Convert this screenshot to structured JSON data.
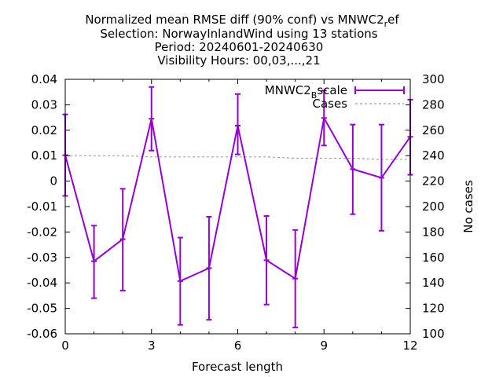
{
  "chart_data": {
    "type": "line",
    "title_lines": [
      "Normalized mean RMSE diff (90% conf) vs MNWC2_ref",
      "Selection: NorwayInlandWind using    13 stations",
      "Period: 20240601-20240630",
      "Visibility   Hours: 00,03,...,21"
    ],
    "xlabel": "Forecast length",
    "ylabel": "",
    "y2label": "No cases",
    "xlim": [
      0,
      12
    ],
    "ylim": [
      -0.06,
      0.04
    ],
    "y2lim": [
      100,
      300
    ],
    "xticks": [
      "0",
      "3",
      "6",
      "9",
      "12"
    ],
    "yticks": [
      "-0.06",
      "-0.05",
      "-0.04",
      "-0.03",
      "-0.02",
      "-0.01",
      "0",
      "0.01",
      "0.02",
      "0.03",
      "0.04"
    ],
    "y2ticks": [
      "100",
      "120",
      "140",
      "160",
      "180",
      "200",
      "220",
      "240",
      "260",
      "280",
      "300"
    ],
    "grid": false,
    "legend_position": "top-right",
    "series": [
      {
        "name": "MNWC2_Bscale",
        "color": "#9400d3",
        "x": [
          0,
          1,
          2,
          3,
          4,
          5,
          6,
          7,
          8,
          9,
          10,
          11,
          12
        ],
        "y": [
          0.0102,
          -0.0315,
          -0.0228,
          0.0245,
          -0.0393,
          -0.0342,
          0.0218,
          -0.0311,
          -0.0383,
          0.0248,
          0.0047,
          0.0013,
          0.0174
        ],
        "y_low": [
          -0.0058,
          -0.046,
          -0.043,
          0.012,
          -0.0565,
          -0.0545,
          0.0105,
          -0.0485,
          -0.0575,
          0.014,
          -0.013,
          -0.0195,
          0.0025
        ],
        "y_high": [
          0.0262,
          -0.0175,
          -0.003,
          0.037,
          -0.0222,
          -0.014,
          0.0342,
          -0.0137,
          -0.0192,
          0.0356,
          0.0222,
          0.0222,
          0.032
        ]
      },
      {
        "name": "Cases",
        "color": "#a0a0a0",
        "axis": "y2",
        "x": [
          0,
          1,
          2,
          3,
          4,
          5,
          6,
          7,
          8,
          9,
          10,
          11,
          12
        ],
        "y": [
          240,
          240,
          240,
          239,
          239,
          239,
          239,
          239,
          238,
          238,
          238,
          237,
          237
        ]
      }
    ]
  }
}
